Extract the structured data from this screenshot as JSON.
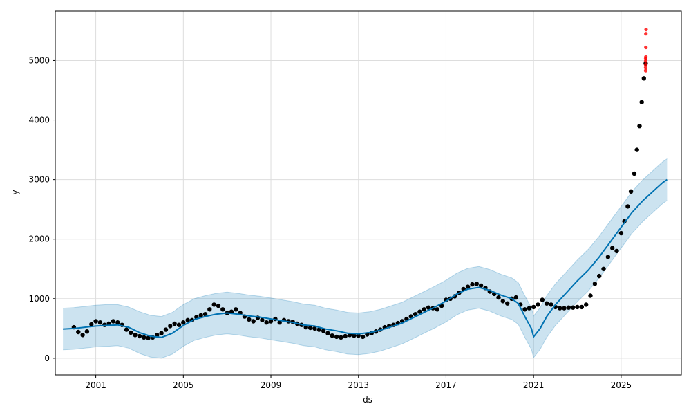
{
  "chart_data": {
    "type": "line",
    "title": "",
    "xlabel": "ds",
    "ylabel": "y",
    "x_ticks": [
      "2001",
      "2005",
      "2009",
      "2013",
      "2017",
      "2021",
      "2025"
    ],
    "y_ticks": [
      "0",
      "1000",
      "2000",
      "3000",
      "4000",
      "5000"
    ],
    "xlim": [
      1999.15,
      2027.75
    ],
    "ylim": [
      -280,
      5830
    ],
    "grid": true,
    "colors": {
      "forecast_line": "#0072B2",
      "uncertainty_band": "#0072B2",
      "observed_points": "#000000",
      "outlier_points": "#FF0000"
    },
    "series": [
      {
        "role": "observed",
        "x": [
          2000.0,
          2000.2,
          2000.4,
          2000.6,
          2000.8,
          2001.0,
          2001.2,
          2001.4,
          2001.6,
          2001.8,
          2002.0,
          2002.2,
          2002.4,
          2002.6,
          2002.8,
          2003.0,
          2003.2,
          2003.4,
          2003.6,
          2003.8,
          2004.0,
          2004.2,
          2004.4,
          2004.6,
          2004.8,
          2005.0,
          2005.2,
          2005.4,
          2005.6,
          2005.8,
          2006.0,
          2006.2,
          2006.4,
          2006.6,
          2006.8,
          2007.0,
          2007.2,
          2007.4,
          2007.6,
          2007.8,
          2008.0,
          2008.2,
          2008.4,
          2008.6,
          2008.8,
          2009.0,
          2009.2,
          2009.4,
          2009.6,
          2009.8,
          2010.0,
          2010.2,
          2010.4,
          2010.6,
          2010.8,
          2011.0,
          2011.2,
          2011.4,
          2011.6,
          2011.8,
          2012.0,
          2012.2,
          2012.4,
          2012.6,
          2012.8,
          2013.0,
          2013.2,
          2013.4,
          2013.6,
          2013.8,
          2014.0,
          2014.2,
          2014.4,
          2014.6,
          2014.8,
          2015.0,
          2015.2,
          2015.4,
          2015.6,
          2015.8,
          2016.0,
          2016.2,
          2016.4,
          2016.6,
          2016.8,
          2017.0,
          2017.2,
          2017.4,
          2017.6,
          2017.8,
          2018.0,
          2018.2,
          2018.4,
          2018.6,
          2018.8,
          2019.0,
          2019.2,
          2019.4,
          2019.6,
          2019.8,
          2020.0,
          2020.2,
          2020.4,
          2020.6,
          2020.8,
          2021.0,
          2021.2,
          2021.4,
          2021.6,
          2021.8,
          2022.0,
          2022.2,
          2022.4,
          2022.6,
          2022.8,
          2023.0,
          2023.2,
          2023.4,
          2023.6,
          2023.8,
          2024.0,
          2024.2,
          2024.4,
          2024.6,
          2024.8,
          2025.0,
          2025.15,
          2025.3,
          2025.45,
          2025.6,
          2025.72,
          2025.84,
          2025.94,
          2026.04,
          2026.12
        ],
        "y": [
          520,
          440,
          390,
          450,
          570,
          620,
          600,
          560,
          580,
          620,
          600,
          560,
          480,
          430,
          390,
          370,
          350,
          340,
          350,
          390,
          420,
          480,
          540,
          580,
          560,
          600,
          640,
          640,
          690,
          720,
          740,
          820,
          900,
          880,
          820,
          760,
          780,
          820,
          760,
          700,
          650,
          620,
          680,
          640,
          600,
          620,
          660,
          600,
          640,
          620,
          610,
          580,
          560,
          520,
          510,
          500,
          480,
          460,
          420,
          380,
          360,
          350,
          370,
          390,
          380,
          380,
          360,
          400,
          420,
          450,
          480,
          520,
          540,
          560,
          590,
          620,
          660,
          700,
          740,
          780,
          820,
          850,
          840,
          820,
          880,
          980,
          1000,
          1040,
          1100,
          1160,
          1200,
          1240,
          1250,
          1220,
          1180,
          1120,
          1080,
          1020,
          960,
          920,
          1000,
          1020,
          900,
          820,
          840,
          860,
          900,
          980,
          920,
          900,
          860,
          840,
          840,
          850,
          850,
          860,
          860,
          900,
          1050,
          1250,
          1380,
          1500,
          1700,
          1850,
          1800,
          2100,
          2300,
          2550,
          2800,
          3100,
          3500,
          3900,
          4300,
          4700,
          4950
        ]
      },
      {
        "role": "outliers",
        "x": [
          2026.12,
          2026.12,
          2026.12,
          2026.12,
          2026.12,
          2026.13,
          2026.13,
          2026.13,
          2026.14
        ],
        "y": [
          4830,
          4880,
          4930,
          4990,
          5030,
          5060,
          5220,
          5450,
          5520
        ]
      },
      {
        "role": "forecast",
        "x": [
          1999.5,
          2000.0,
          2000.5,
          2001.0,
          2001.5,
          2002.0,
          2002.5,
          2003.0,
          2003.5,
          2004.0,
          2004.5,
          2005.0,
          2005.5,
          2006.0,
          2006.5,
          2007.0,
          2007.5,
          2008.0,
          2008.5,
          2009.0,
          2009.5,
          2010.0,
          2010.5,
          2011.0,
          2011.5,
          2012.0,
          2012.5,
          2013.0,
          2013.5,
          2014.0,
          2014.5,
          2015.0,
          2015.5,
          2016.0,
          2016.5,
          2017.0,
          2017.5,
          2018.0,
          2018.5,
          2019.0,
          2019.5,
          2020.0,
          2020.3,
          2020.6,
          2020.9,
          2021.0,
          2021.3,
          2021.6,
          2022.0,
          2022.5,
          2023.0,
          2023.5,
          2024.0,
          2024.5,
          2025.0,
          2025.5,
          2026.0,
          2026.6,
          2026.9,
          2027.1
        ],
        "y": [
          490,
          500,
          520,
          540,
          550,
          560,
          520,
          430,
          370,
          350,
          420,
          550,
          650,
          700,
          740,
          760,
          740,
          710,
          690,
          660,
          630,
          600,
          560,
          540,
          490,
          460,
          420,
          410,
          430,
          470,
          530,
          590,
          680,
          770,
          860,
          960,
          1080,
          1160,
          1190,
          1140,
          1060,
          1000,
          920,
          700,
          500,
          360,
          500,
          700,
          900,
          1100,
          1300,
          1480,
          1700,
          1950,
          2200,
          2450,
          2650,
          2850,
          2950,
          3000
        ]
      },
      {
        "role": "forecast_upper",
        "x": [
          1999.5,
          2000.0,
          2000.5,
          2001.0,
          2001.5,
          2002.0,
          2002.5,
          2003.0,
          2003.5,
          2004.0,
          2004.5,
          2005.0,
          2005.5,
          2006.0,
          2006.5,
          2007.0,
          2007.5,
          2008.0,
          2008.5,
          2009.0,
          2009.5,
          2010.0,
          2010.5,
          2011.0,
          2011.5,
          2012.0,
          2012.5,
          2013.0,
          2013.5,
          2014.0,
          2014.5,
          2015.0,
          2015.5,
          2016.0,
          2016.5,
          2017.0,
          2017.5,
          2018.0,
          2018.5,
          2019.0,
          2019.5,
          2020.0,
          2020.3,
          2020.6,
          2020.9,
          2021.0,
          2021.3,
          2021.6,
          2022.0,
          2022.5,
          2023.0,
          2023.5,
          2024.0,
          2024.5,
          2025.0,
          2025.5,
          2026.0,
          2026.6,
          2026.9,
          2027.1
        ],
        "y": [
          840,
          850,
          870,
          890,
          900,
          900,
          860,
          780,
          720,
          700,
          770,
          900,
          1000,
          1050,
          1090,
          1110,
          1090,
          1060,
          1040,
          1010,
          980,
          950,
          910,
          890,
          840,
          810,
          770,
          760,
          780,
          820,
          880,
          940,
          1030,
          1120,
          1210,
          1310,
          1430,
          1510,
          1540,
          1490,
          1410,
          1350,
          1270,
          1050,
          850,
          710,
          850,
          1050,
          1250,
          1450,
          1650,
          1830,
          2050,
          2300,
          2550,
          2800,
          3000,
          3200,
          3300,
          3350
        ]
      },
      {
        "role": "forecast_lower",
        "x": [
          1999.5,
          2000.0,
          2000.5,
          2001.0,
          2001.5,
          2002.0,
          2002.5,
          2003.0,
          2003.5,
          2004.0,
          2004.5,
          2005.0,
          2005.5,
          2006.0,
          2006.5,
          2007.0,
          2007.5,
          2008.0,
          2008.5,
          2009.0,
          2009.5,
          2010.0,
          2010.5,
          2011.0,
          2011.5,
          2012.0,
          2012.5,
          2013.0,
          2013.5,
          2014.0,
          2014.5,
          2015.0,
          2015.5,
          2016.0,
          2016.5,
          2017.0,
          2017.5,
          2018.0,
          2018.5,
          2019.0,
          2019.5,
          2020.0,
          2020.3,
          2020.6,
          2020.9,
          2021.0,
          2021.3,
          2021.6,
          2022.0,
          2022.5,
          2023.0,
          2023.5,
          2024.0,
          2024.5,
          2025.0,
          2025.5,
          2026.0,
          2026.6,
          2026.9,
          2027.1
        ],
        "y": [
          140,
          150,
          170,
          190,
          200,
          210,
          170,
          80,
          20,
          0,
          70,
          200,
          300,
          350,
          390,
          410,
          390,
          360,
          340,
          310,
          280,
          250,
          210,
          190,
          140,
          110,
          70,
          60,
          80,
          120,
          180,
          240,
          330,
          420,
          510,
          610,
          730,
          810,
          840,
          790,
          710,
          650,
          570,
          350,
          150,
          10,
          150,
          350,
          550,
          750,
          950,
          1130,
          1350,
          1600,
          1850,
          2100,
          2300,
          2500,
          2600,
          2650
        ]
      }
    ]
  }
}
